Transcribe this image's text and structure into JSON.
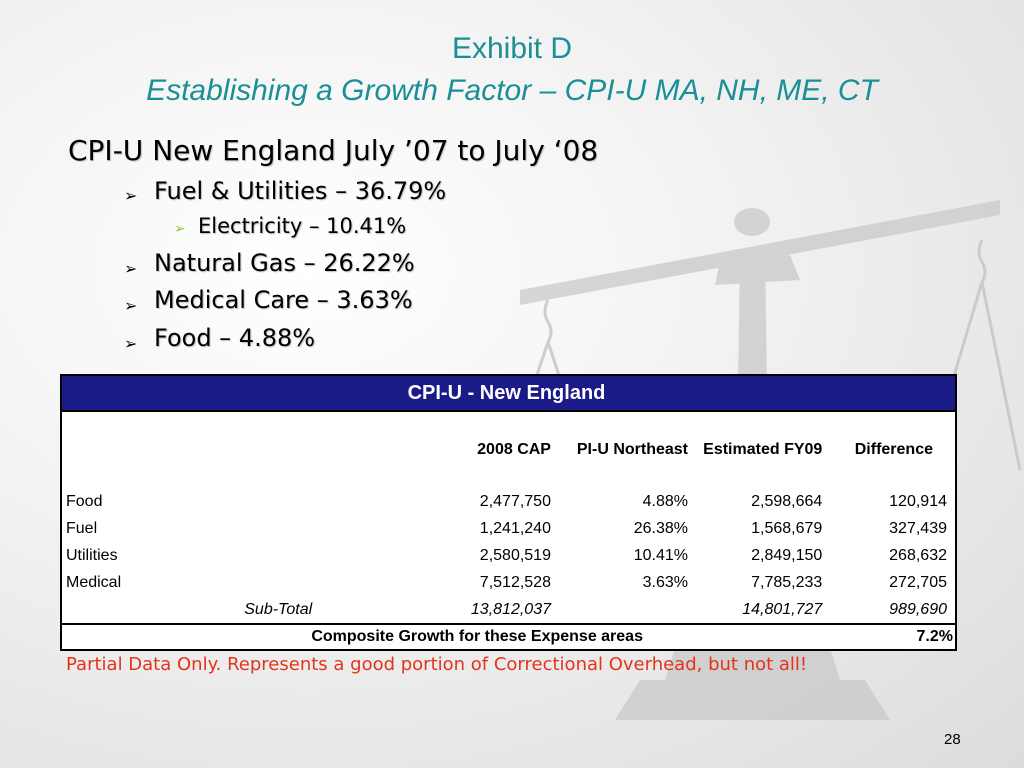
{
  "title": "Exhibit D",
  "subtitle": "Establishing a Growth Factor – CPI-U MA, NH, ME, CT",
  "bullets": {
    "main": "CPI-U New England July ’07 to July ‘08",
    "fuel": "Fuel & Utilities – 36.79%",
    "electricity": "Electricity – 10.41%",
    "natural_gas": "Natural Gas – 26.22%",
    "medical": "Medical Care – 3.63%",
    "food": "Food – 4.88%"
  },
  "table": {
    "title": "CPI-U - New England",
    "headers": [
      "2008 CAP",
      "PI-U Northeast",
      "Estimated FY09",
      "Difference"
    ],
    "rows": [
      {
        "label": "Food",
        "cap": "2,477,750",
        "pct": "4.88%",
        "est": "2,598,664",
        "diff": "120,914"
      },
      {
        "label": "Fuel",
        "cap": "1,241,240",
        "pct": "26.38%",
        "est": "1,568,679",
        "diff": "327,439"
      },
      {
        "label": "Utilities",
        "cap": "2,580,519",
        "pct": "10.41%",
        "est": "2,849,150",
        "diff": "268,632"
      },
      {
        "label": "Medical",
        "cap": "7,512,528",
        "pct": "3.63%",
        "est": "7,785,233",
        "diff": "272,705"
      }
    ],
    "subtotal": {
      "label": "Sub-Total",
      "cap": "13,812,037",
      "est": "14,801,727",
      "diff": "989,690"
    },
    "composite": {
      "label": "Composite Growth for these Expense areas",
      "value": "7.2%"
    }
  },
  "note": "Partial Data Only.  Represents a good portion of Correctional Overhead, but not all!",
  "page_number": "28",
  "colors": {
    "title": "#1a8f95",
    "table_header_bg": "#1b1b88",
    "note": "#e5331a",
    "sub_bullet_arrow": "#8cc63f"
  }
}
